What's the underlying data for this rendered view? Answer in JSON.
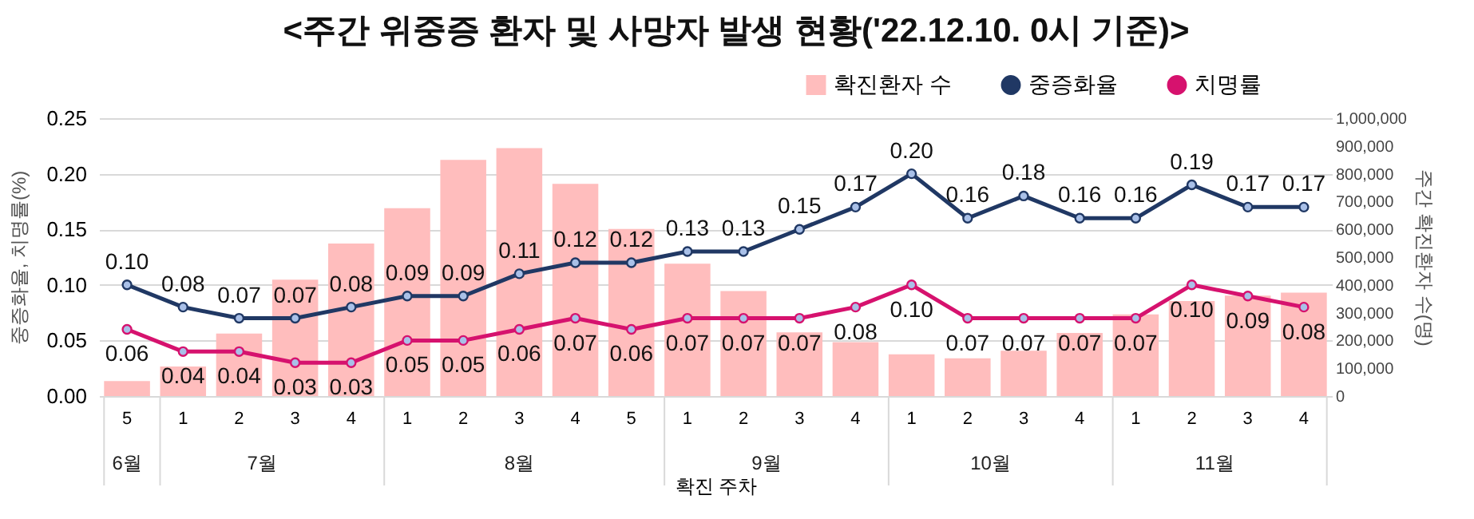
{
  "chart_data": {
    "type": "bar",
    "title": "<주간 위중증 환자 및 사망자 발생 현황('22.12.10. 0시 기준)>",
    "xlabel": "확진 주차",
    "ylabel": "중증화율, 치명률(%)",
    "y2label": "주간 확진환자 수(명)",
    "categories": [
      "5",
      "1",
      "2",
      "3",
      "4",
      "1",
      "2",
      "3",
      "4",
      "5",
      "1",
      "2",
      "3",
      "4",
      "1",
      "2",
      "3",
      "4",
      "1",
      "2",
      "3",
      "4"
    ],
    "annotations": [
      "6월",
      "7월",
      "8월",
      "9월",
      "10월",
      "11월"
    ],
    "series": [
      {
        "name": "확진환자 수",
        "axis": "y2",
        "color": "#ffbdbd",
        "values": [
          54000,
          106000,
          225000,
          419000,
          549000,
          676000,
          850000,
          892000,
          764000,
          601000,
          476000,
          378000,
          229000,
          194000,
          150000,
          136000,
          163000,
          227000,
          294000,
          342000,
          361000,
          372000
        ]
      },
      {
        "name": "중증화율",
        "type": "line",
        "axis": "y",
        "color": "#203864",
        "values": [
          0.1,
          0.08,
          0.07,
          0.07,
          0.08,
          0.09,
          0.09,
          0.11,
          0.12,
          0.12,
          0.13,
          0.13,
          0.15,
          0.17,
          0.2,
          0.16,
          0.18,
          0.16,
          0.16,
          0.19,
          0.17,
          0.17
        ],
        "value_labels": [
          "0.10",
          "0.08",
          "0.07",
          "0.07",
          "0.08",
          "0.09",
          "0.09",
          "0.11",
          "0.12",
          "0.12",
          "0.13",
          "0.13",
          "0.15",
          "0.17",
          "0.20",
          "0.16",
          "0.18",
          "0.16",
          "0.16",
          "0.19",
          "0.17",
          "0.17"
        ]
      },
      {
        "name": "치명률",
        "type": "line",
        "axis": "y",
        "color": "#d6126e",
        "values": [
          0.06,
          0.04,
          0.04,
          0.03,
          0.03,
          0.05,
          0.05,
          0.06,
          0.07,
          0.06,
          0.07,
          0.07,
          0.07,
          0.08,
          0.1,
          0.07,
          0.07,
          0.07,
          0.07,
          0.1,
          0.09,
          0.08
        ],
        "value_labels": [
          "0.06",
          "0.04",
          "0.04",
          "0.03",
          "0.03",
          "0.05",
          "0.05",
          "0.06",
          "0.07",
          "0.06",
          "0.07",
          "0.07",
          "0.07",
          "0.08",
          "0.10",
          "0.07",
          "0.07",
          "0.07",
          "0.07",
          "0.10",
          "0.09",
          "0.08"
        ]
      }
    ],
    "ylim": [
      0,
      0.25
    ],
    "yticks": [
      {
        "value": 0,
        "label": "0.00"
      },
      {
        "value": 0.05,
        "label": "0.05"
      },
      {
        "value": 0.1,
        "label": "0.10"
      },
      {
        "value": 0.15,
        "label": "0.15"
      },
      {
        "value": 0.2,
        "label": "0.20"
      },
      {
        "value": 0.25,
        "label": "0.25"
      }
    ],
    "y2lim": [
      0,
      1000000
    ],
    "y2ticks": [
      {
        "value": 0,
        "label": "0"
      },
      {
        "value": 100000,
        "label": "100,000"
      },
      {
        "value": 200000,
        "label": "200,000"
      },
      {
        "value": 300000,
        "label": "300,000"
      },
      {
        "value": 400000,
        "label": "400,000"
      },
      {
        "value": 500000,
        "label": "500,000"
      },
      {
        "value": 600000,
        "label": "600,000"
      },
      {
        "value": 700000,
        "label": "700,000"
      },
      {
        "value": 800000,
        "label": "800,000"
      },
      {
        "value": 900000,
        "label": "900,000"
      },
      {
        "value": 1000000,
        "label": "1,000,000"
      }
    ],
    "grid": "y",
    "legend": "top right",
    "marker": "circle",
    "line_style": "solid"
  }
}
